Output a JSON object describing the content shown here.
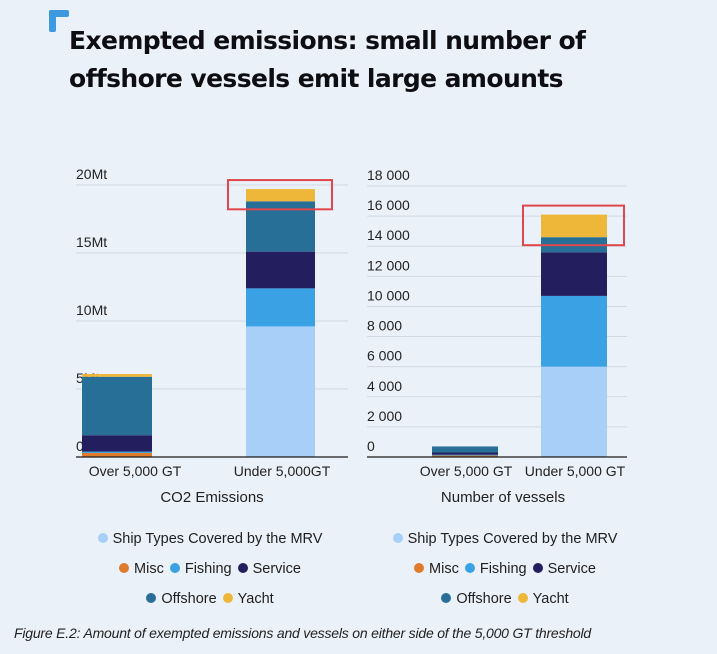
{
  "title": "Exempted emissions: small number of offshore vessels emit large amounts",
  "caption": "Figure E.2: Amount of exempted emissions and vessels on either side of the 5,000 GT threshold",
  "colors": {
    "accent": "#3d9ae0",
    "highlight_box": "#e0474c",
    "axis": "#1a1a1a",
    "grid": "#d3d9e1"
  },
  "series_meta": [
    {
      "name": "Ship Types Covered by the MRV",
      "color": "#a7cff7"
    },
    {
      "name": "Misc",
      "color": "#e07b2c"
    },
    {
      "name": "Fishing",
      "color": "#3aa2e4"
    },
    {
      "name": "Service",
      "color": "#231f5e"
    },
    {
      "name": "Offshore",
      "color": "#276f96"
    },
    {
      "name": "Yacht",
      "color": "#efb73a"
    }
  ],
  "chart_data": [
    {
      "type": "bar",
      "stacked": true,
      "title": "",
      "xlabel": "CO2 Emissions",
      "ylabel": "",
      "categories": [
        "Over 5,000 GT",
        "Under 5,000GT"
      ],
      "ylim": [
        0,
        20
      ],
      "yticks": [
        0,
        5,
        10,
        15,
        20
      ],
      "ytick_labels": [
        "0",
        "5Mt",
        "10Mt",
        "15Mt",
        "20Mt"
      ],
      "grid": true,
      "legend": "bottom",
      "series": [
        {
          "name": "Ship Types Covered by the MRV",
          "values": [
            0,
            9.6
          ]
        },
        {
          "name": "Misc",
          "values": [
            0.3,
            0
          ]
        },
        {
          "name": "Fishing",
          "values": [
            0.1,
            2.8
          ]
        },
        {
          "name": "Service",
          "values": [
            1.2,
            2.7
          ]
        },
        {
          "name": "Offshore",
          "values": [
            4.3,
            3.7
          ]
        },
        {
          "name": "Yacht",
          "values": [
            0.2,
            0.9
          ]
        }
      ],
      "highlight": {
        "category": "Under 5,000GT",
        "series": [
          "Offshore",
          "Yacht"
        ],
        "note": "red box around top of bar"
      }
    },
    {
      "type": "bar",
      "stacked": true,
      "title": "",
      "xlabel": "Number of vessels",
      "ylabel": "",
      "categories": [
        "Over 5,000 GT",
        "Under 5,000 GT"
      ],
      "ylim": [
        0,
        18000
      ],
      "yticks": [
        0,
        2000,
        4000,
        6000,
        8000,
        10000,
        12000,
        14000,
        16000,
        18000
      ],
      "ytick_labels": [
        "0",
        "2 000",
        "4 000",
        "6 000",
        "8 000",
        "10 000",
        "12 000",
        "14 000",
        "16 000",
        "18 000"
      ],
      "grid": true,
      "legend": "bottom",
      "series": [
        {
          "name": "Ship Types Covered by the MRV",
          "values": [
            0,
            6000
          ]
        },
        {
          "name": "Misc",
          "values": [
            100,
            0
          ]
        },
        {
          "name": "Fishing",
          "values": [
            50,
            4700
          ]
        },
        {
          "name": "Service",
          "values": [
            150,
            2900
          ]
        },
        {
          "name": "Offshore",
          "values": [
            400,
            1000
          ]
        },
        {
          "name": "Yacht",
          "values": [
            0,
            1500
          ]
        }
      ],
      "highlight": {
        "category": "Under 5,000 GT",
        "series": [
          "Offshore",
          "Yacht"
        ],
        "note": "red box around top of bar"
      }
    }
  ],
  "legend_rows": [
    [
      0
    ],
    [
      1,
      2,
      3
    ],
    [
      4,
      5
    ]
  ]
}
